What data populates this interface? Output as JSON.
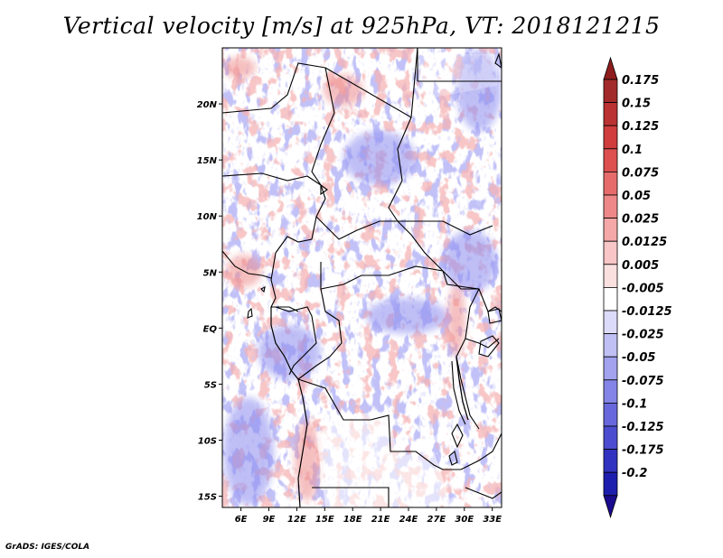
{
  "title": "Vertical velocity [m/s] at 925hPa, VT: 2018121215",
  "credit": "GrADS: IGES/COLA",
  "map": {
    "lon_range": [
      4,
      34
    ],
    "lat_range": [
      -16,
      25
    ],
    "lon_ticks": [
      {
        "value": 6,
        "label": "6E"
      },
      {
        "value": 9,
        "label": "9E"
      },
      {
        "value": 12,
        "label": "12E"
      },
      {
        "value": 15,
        "label": "15E"
      },
      {
        "value": 18,
        "label": "18E"
      },
      {
        "value": 21,
        "label": "21E"
      },
      {
        "value": 24,
        "label": "24E"
      },
      {
        "value": 27,
        "label": "27E"
      },
      {
        "value": 30,
        "label": "30E"
      },
      {
        "value": 33,
        "label": "33E"
      }
    ],
    "lat_ticks": [
      {
        "value": 20,
        "label": "20N"
      },
      {
        "value": 15,
        "label": "15N"
      },
      {
        "value": 10,
        "label": "10N"
      },
      {
        "value": 5,
        "label": "5N"
      },
      {
        "value": 0,
        "label": "EQ"
      },
      {
        "value": -5,
        "label": "5S"
      },
      {
        "value": -10,
        "label": "10S"
      },
      {
        "value": -15,
        "label": "15S"
      }
    ],
    "field_colors": {
      "negative": "#8c8cf0",
      "positive": "#ee8c8c",
      "strong_negative": "#5050d8",
      "strong_positive": "#d84848",
      "border": "#000000"
    }
  },
  "colorbar": {
    "levels": [
      {
        "label": "0.175",
        "color": "#a32a2a"
      },
      {
        "label": "0.15",
        "color": "#bb3232"
      },
      {
        "label": "0.125",
        "color": "#cf3d3d"
      },
      {
        "label": "0.1",
        "color": "#dd5050"
      },
      {
        "label": "0.075",
        "color": "#e66c6c"
      },
      {
        "label": "0.05",
        "color": "#ee8888"
      },
      {
        "label": "0.025",
        "color": "#f4a8a8"
      },
      {
        "label": "0.0125",
        "color": "#f8c6c6"
      },
      {
        "label": "0.005",
        "color": "#fbe0e0"
      },
      {
        "label": "-0.005",
        "color": "#ffffff"
      },
      {
        "label": "-0.0125",
        "color": "#dcdcfa"
      },
      {
        "label": "-0.025",
        "color": "#c0c0f4"
      },
      {
        "label": "-0.05",
        "color": "#a2a2ee"
      },
      {
        "label": "-0.075",
        "color": "#8484e6"
      },
      {
        "label": "-0.1",
        "color": "#6868dc"
      },
      {
        "label": "-0.125",
        "color": "#4c4cd0"
      },
      {
        "label": "-0.175",
        "color": "#3232c0"
      },
      {
        "label": "-0.2",
        "color": "#1e1eae"
      }
    ],
    "top_arrow_color": "#8e1d1d",
    "bottom_arrow_color": "#1a0b8e"
  }
}
